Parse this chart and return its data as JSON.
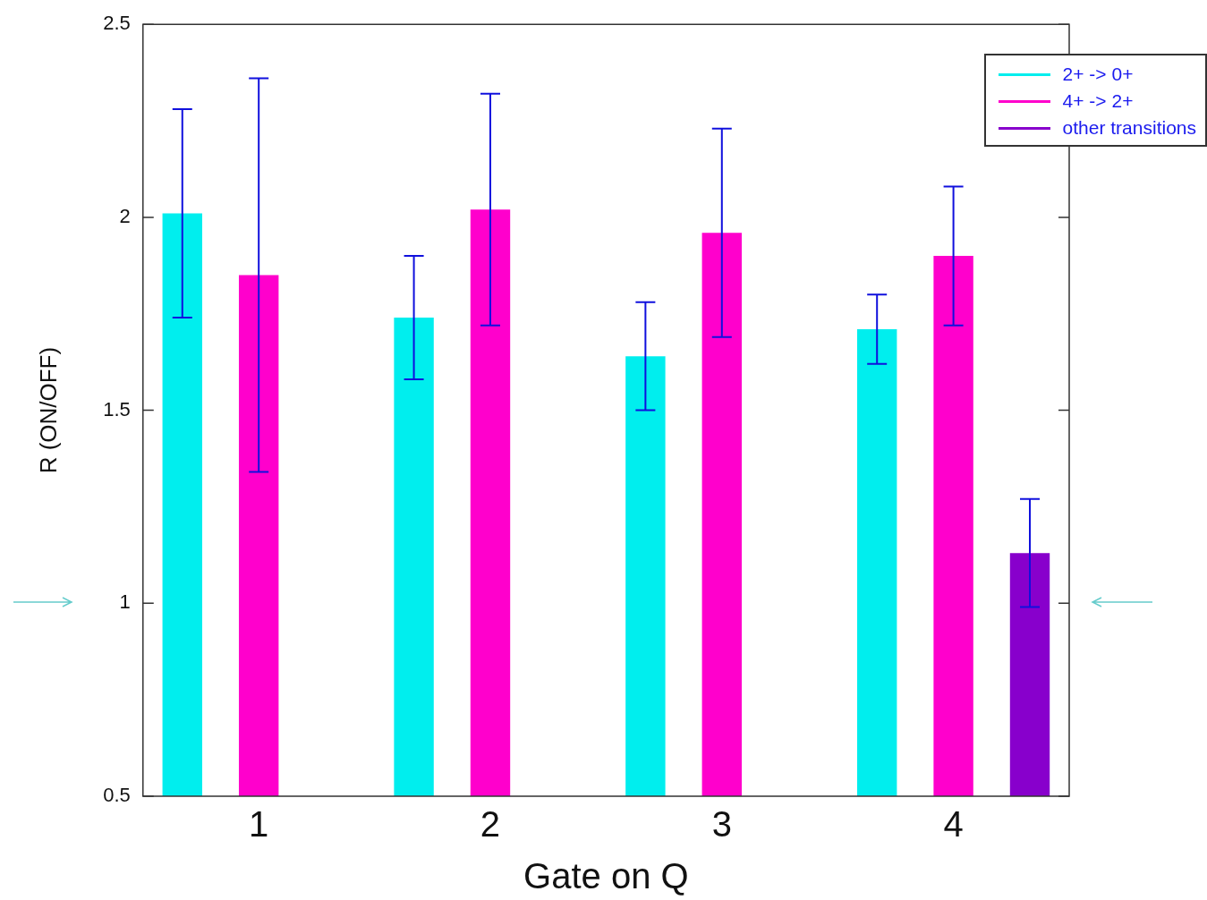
{
  "chart_data": {
    "type": "bar",
    "xlabel": "Gate on Q",
    "ylabel": "R (ON/OFF)",
    "categories": [
      "1",
      "2",
      "3",
      "4"
    ],
    "series": [
      {
        "name": "2+ -> 0+",
        "color": "#00eeee",
        "values": [
          2.01,
          1.74,
          1.64,
          1.71
        ],
        "errors": [
          [
            1.74,
            2.28
          ],
          [
            1.58,
            1.9
          ],
          [
            1.5,
            1.78
          ],
          [
            1.62,
            1.8
          ]
        ]
      },
      {
        "name": "4+ -> 2+",
        "color": "#ff00cc",
        "values": [
          1.85,
          2.02,
          1.96,
          1.9
        ],
        "errors": [
          [
            1.34,
            2.36
          ],
          [
            1.72,
            2.32
          ],
          [
            1.69,
            2.23
          ],
          [
            1.72,
            2.08
          ]
        ]
      },
      {
        "name": "other transitions",
        "color": "#8800cc",
        "values": [
          null,
          null,
          null,
          1.13
        ],
        "errors": [
          null,
          null,
          null,
          [
            0.99,
            1.27
          ]
        ]
      }
    ],
    "ylim": [
      0.5,
      2.5
    ],
    "yticks": [
      0.5,
      1,
      1.5,
      2,
      2.5
    ],
    "grid": false,
    "legend": "top right"
  }
}
